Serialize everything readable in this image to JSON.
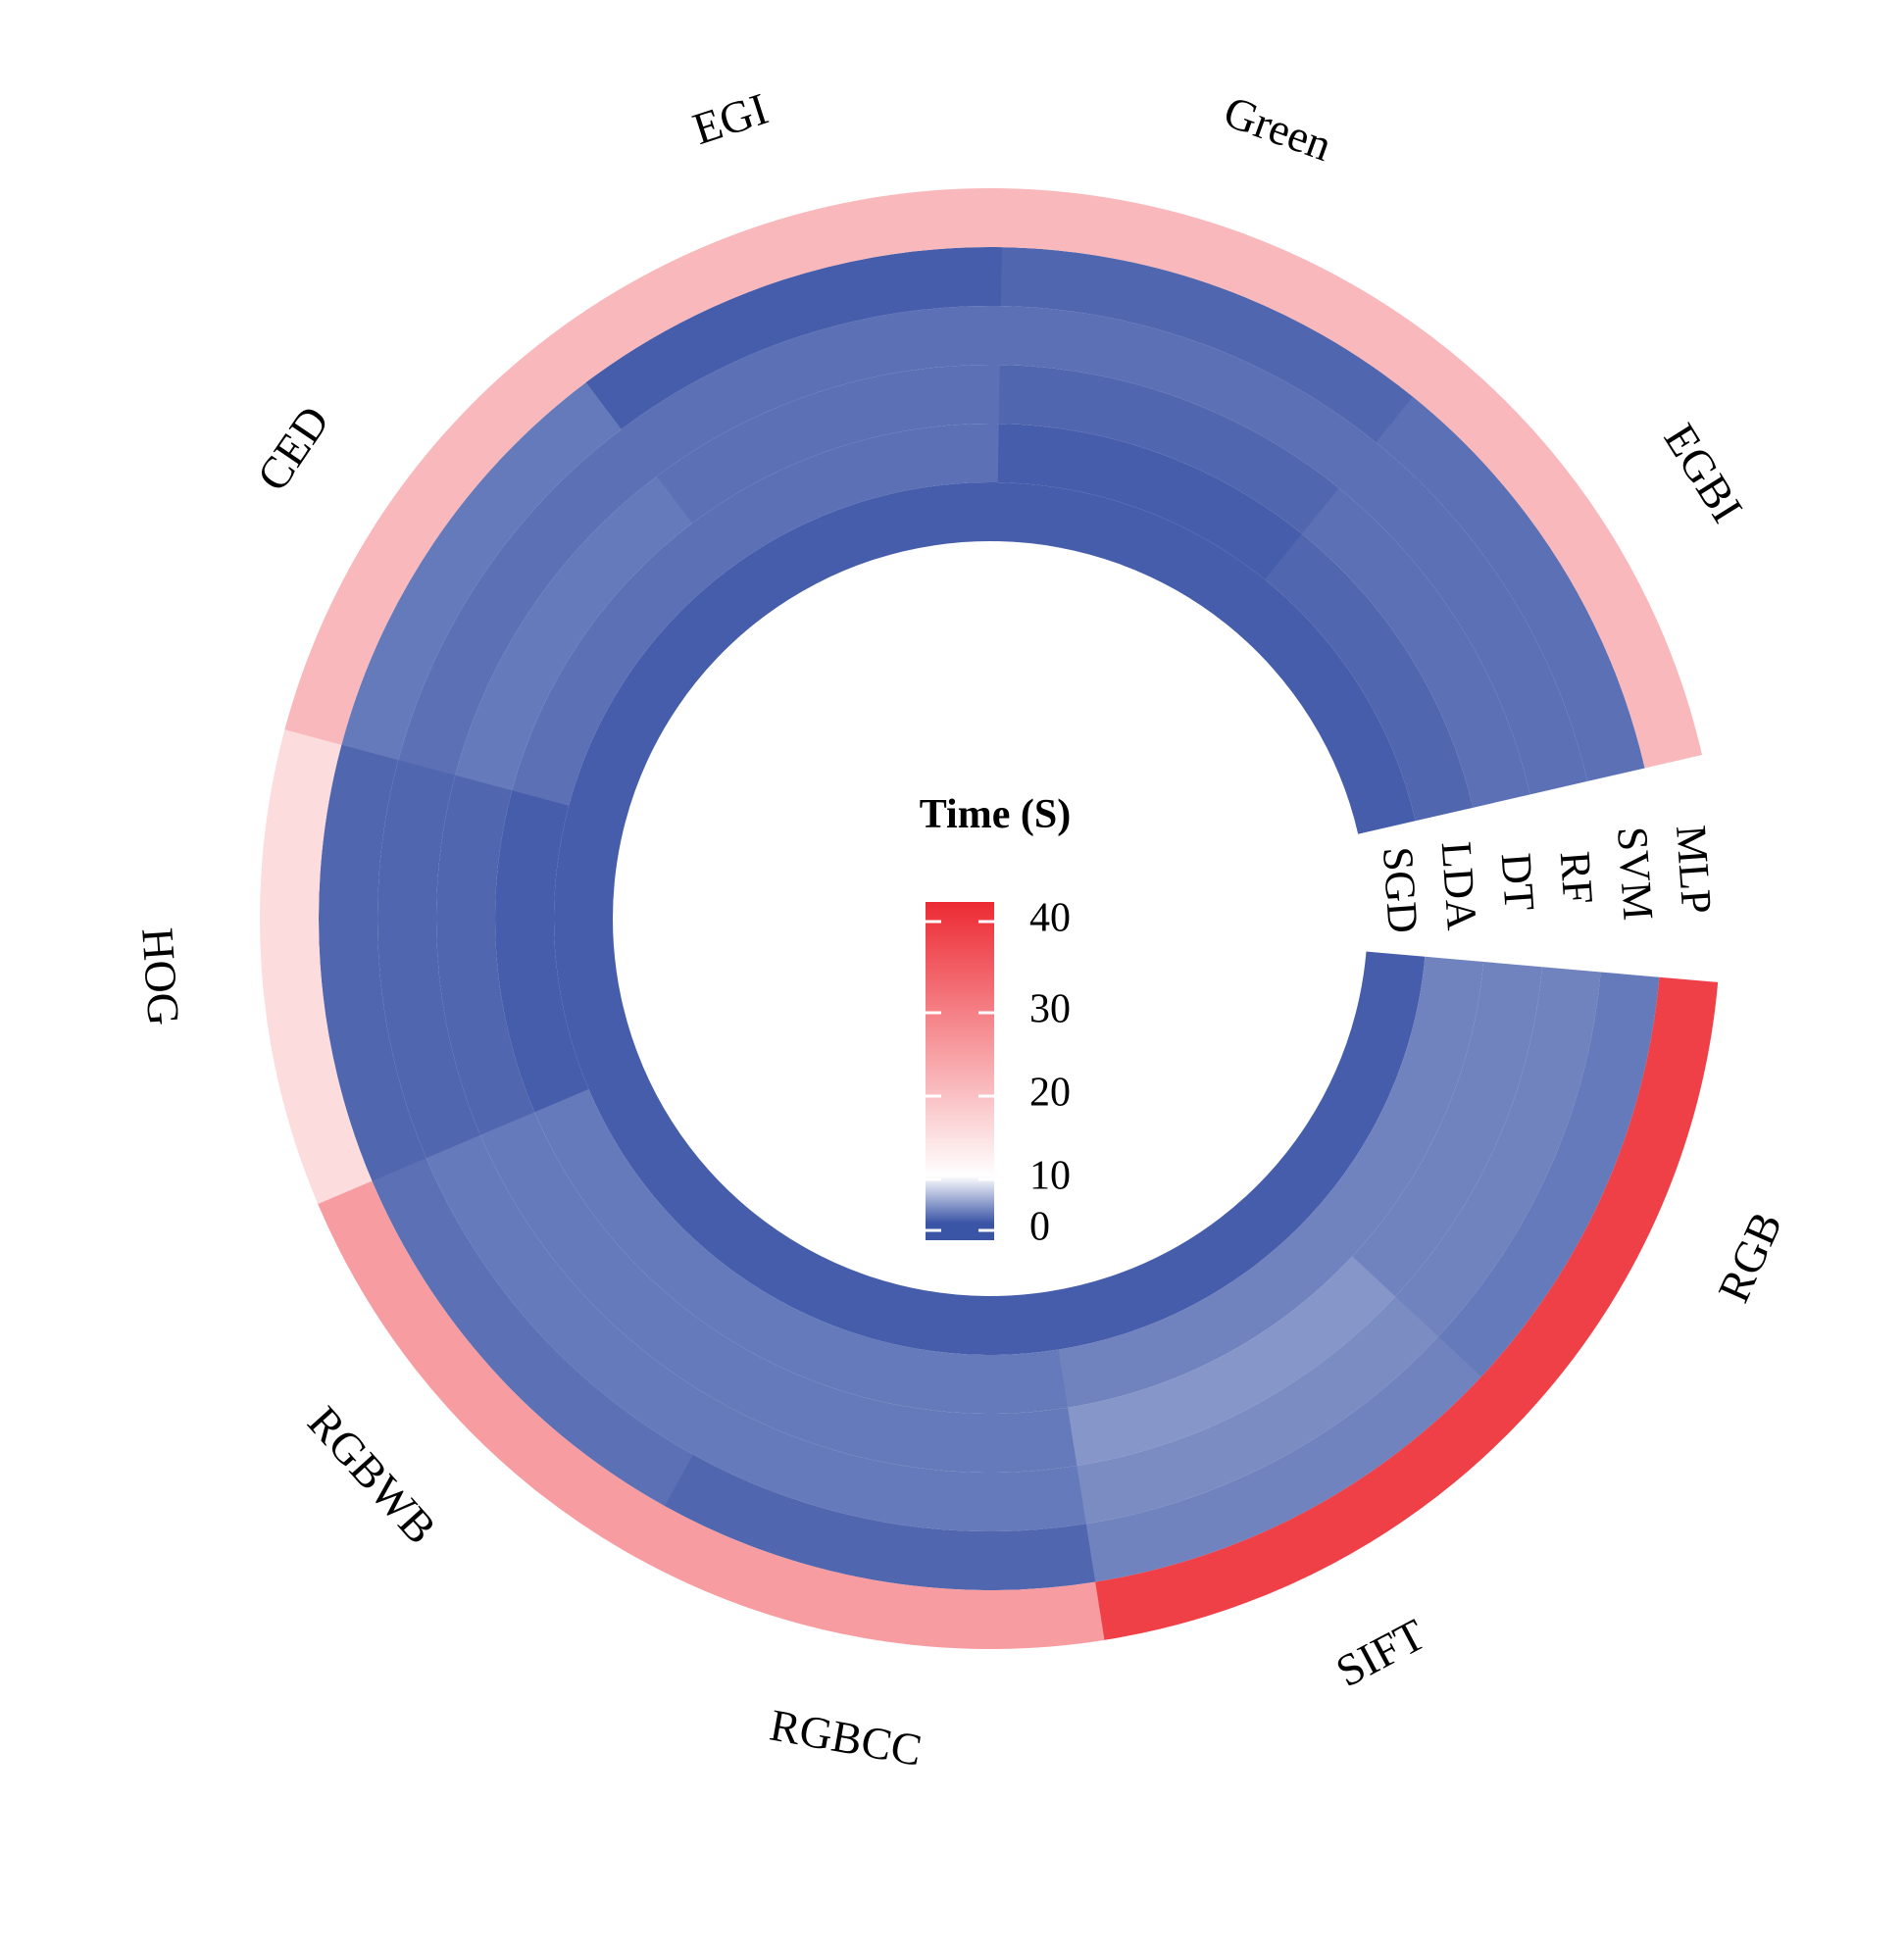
{
  "chart_data": {
    "type": "heatmap",
    "layout": "circular",
    "categories": [
      "RGB",
      "SIFT",
      "RGBCC",
      "RGBWB",
      "HOG",
      "CED",
      "EGI",
      "Green",
      "EGBI"
    ],
    "rows": [
      "SGD",
      "LDA",
      "DT",
      "RF",
      "SVM",
      "MLP"
    ],
    "values": {
      "SGD": [
        1,
        1,
        1,
        1,
        1,
        1,
        1,
        1,
        1
      ],
      "LDA": [
        5,
        5,
        4,
        4,
        1,
        3,
        3,
        1,
        2
      ],
      "DT": [
        5,
        7,
        4,
        4,
        2,
        4,
        3,
        2,
        3
      ],
      "RF": [
        5,
        6,
        4,
        4,
        2,
        3,
        3,
        3,
        3
      ],
      "SVM": [
        4,
        5,
        2,
        3,
        2,
        4,
        1,
        2,
        3
      ],
      "MLP": [
        37,
        37,
        24,
        24,
        15,
        20,
        20,
        20,
        20
      ]
    },
    "legend": {
      "title": "Time (S)",
      "ticks": [
        0,
        10,
        20,
        30,
        40
      ],
      "range": [
        0,
        40
      ],
      "colors": [
        "#3a54a6",
        "#ffffff",
        "#ed2a33"
      ]
    }
  }
}
